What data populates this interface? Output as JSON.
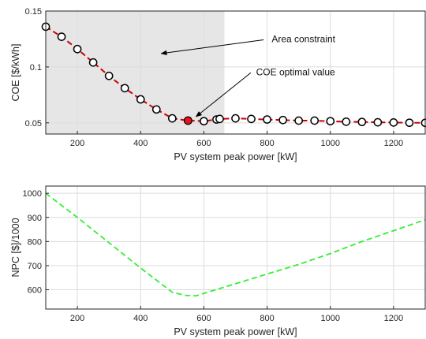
{
  "colors": {
    "shade": "#e6e6e6",
    "coe_line": "#cc0000",
    "marker_fill": "#ffffff",
    "marker_edge": "#000000",
    "optimal_fill": "#e8141b",
    "npc_line": "#33ee33"
  },
  "chart_data": [
    {
      "type": "line",
      "xlabel": "PV system peak power [kW]",
      "ylabel": "COE [$/kWh]",
      "xlim": [
        100,
        1300
      ],
      "ylim": [
        0.04,
        0.15
      ],
      "xticks": [
        "200",
        "400",
        "600",
        "800",
        "1000",
        "1200"
      ],
      "yticks": [
        "0.05",
        "0.1",
        "0.15"
      ],
      "grid": true,
      "shaded_region": {
        "x_from": 100,
        "x_to": 665
      },
      "series": [
        {
          "marker": "circle",
          "line_style": "dashed",
          "x": [
            100,
            150,
            200,
            250,
            300,
            350,
            400,
            450,
            500,
            550,
            600,
            640,
            650,
            700,
            750,
            800,
            850,
            900,
            950,
            1000,
            1050,
            1100,
            1150,
            1200,
            1250,
            1300
          ],
          "y": [
            0.136,
            0.127,
            0.116,
            0.104,
            0.092,
            0.081,
            0.071,
            0.062,
            0.054,
            0.052,
            0.0515,
            0.053,
            0.0535,
            0.054,
            0.0535,
            0.053,
            0.0525,
            0.052,
            0.052,
            0.0515,
            0.051,
            0.0508,
            0.0505,
            0.0503,
            0.0501,
            0.05
          ]
        }
      ],
      "optimal_point": {
        "x": 550,
        "y": 0.052
      },
      "annotations": [
        {
          "text": "Area constraint",
          "x_text": 915,
          "y_text": 0.125,
          "x_arrow": 465,
          "y_arrow": 0.112
        },
        {
          "text": "COE optimal value",
          "x_text": 890,
          "y_text": 0.0955,
          "x_arrow": 575,
          "y_arrow": 0.0555
        }
      ]
    },
    {
      "type": "line",
      "xlabel": "PV system peak power [kW]",
      "ylabel": "NPC [$]/1000",
      "xlim": [
        100,
        1300
      ],
      "ylim": [
        520,
        1030
      ],
      "xticks": [
        "200",
        "400",
        "600",
        "800",
        "1000",
        "1200"
      ],
      "yticks": [
        "600",
        "700",
        "800",
        "900",
        "1000"
      ],
      "grid": true,
      "series": [
        {
          "line_style": "dashed",
          "x": [
            100,
            200,
            300,
            400,
            500,
            540,
            575,
            600,
            700,
            800,
            900,
            1000,
            1100,
            1200,
            1300
          ],
          "y": [
            1000,
            900,
            795,
            690,
            590,
            577,
            575,
            585,
            625,
            665,
            705,
            750,
            800,
            845,
            890
          ]
        }
      ]
    }
  ]
}
